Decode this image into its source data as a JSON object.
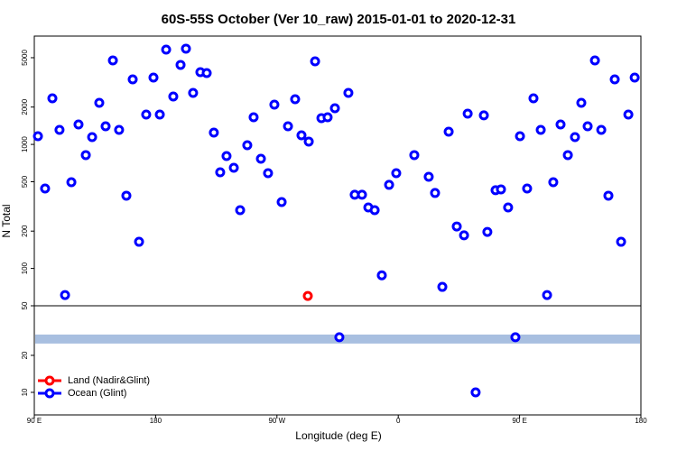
{
  "chart_data": {
    "type": "scatter",
    "title": "60S-55S October (Ver 10_raw)   2015-01-01 to 2020-12-31",
    "xlabel": "Longitude (deg E)",
    "ylabel": "N Total",
    "xlim": [
      90,
      540
    ],
    "xticks": [
      {
        "value": 90,
        "label": "90 E"
      },
      {
        "value": 180,
        "label": "180"
      },
      {
        "value": 270,
        "label": "90 W"
      },
      {
        "value": 360,
        "label": "0"
      },
      {
        "value": 450,
        "label": "90 E"
      },
      {
        "value": 540,
        "label": "180"
      }
    ],
    "log_y": true,
    "ylim": [
      50,
      7470
    ],
    "yticks": [
      50,
      100,
      200,
      500,
      1000,
      2000,
      5000
    ],
    "series": [
      {
        "name": "Land (Nadir&Glint)",
        "color": "#ff0000",
        "x": [
          292.9
        ],
        "values": [
          60
        ]
      },
      {
        "name": "Ocean (Glint)",
        "color": "#0000ff",
        "x": [
          92.7,
          98.0,
          103.4,
          108.7,
          112.8,
          117.5,
          122.8,
          128.2,
          132.9,
          138.2,
          142.9,
          148.3,
          152.9,
          158.3,
          163.0,
          167.7,
          173.0,
          178.4,
          183.1,
          187.8,
          193.1,
          198.5,
          202.5,
          207.8,
          213.2,
          217.9,
          223.2,
          227.9,
          232.6,
          238.0,
          242.7,
          248.0,
          252.7,
          258.1,
          263.4,
          268.1,
          273.5,
          278.2,
          283.5,
          288.2,
          293.6,
          298.3,
          303.0,
          307.6,
          313.0,
          323.0,
          327.7,
          333.1,
          337.8,
          342.5,
          347.8,
          353.2,
          358.5,
          371.9,
          382.6,
          387.3,
          392.7,
          397.4,
          403.4,
          408.8,
          411.5,
          423.5,
          426.1,
          432.2,
          436.2,
          441.5,
          450.3,
          455.6,
          460.3,
          465.7,
          470.4,
          475.0,
          480.4,
          485.8,
          491.1,
          495.8,
          500.5,
          505.9,
          510.6,
          515.9,
          520.6,
          525.3,
          530.7,
          535.4
        ],
        "values": [
          1165,
          441,
          2353,
          1310,
          61,
          496,
          1448,
          820,
          1146,
          2165,
          1400,
          4755,
          1310,
          386,
          3345,
          164,
          1741,
          3460,
          1741,
          5810,
          2434,
          4375,
          5915,
          2603,
          3825,
          3760,
          1246,
          596,
          806,
          648,
          295,
          985,
          1656,
          766,
          586,
          2093,
          343,
          1400,
          2313,
          1184,
          1054,
          4675,
          1629,
          1656,
          1958,
          2603,
          393,
          393,
          310,
          295,
          88,
          472,
          586,
          820,
          548,
          406,
          71,
          1267,
          218,
          185,
          1770,
          1714,
          197,
          427,
          434,
          310,
          1165,
          441,
          2353,
          1310,
          61,
          496,
          1448,
          820,
          1146,
          2165,
          1400,
          4755,
          1310,
          386,
          3345,
          164,
          1741,
          3460
        ]
      }
    ],
    "lower_panel": {
      "ylim": [
        3.9,
        33.4
      ],
      "yticks": [
        10,
        20
      ],
      "band": {
        "value": 24.4,
        "color": "#a8bfe0"
      },
      "legend": "lower left",
      "series": [
        {
          "color": "#0000ff",
          "x": [
            316.3,
            446.9,
            417.4
          ],
          "values": [
            24.9,
            24.9,
            10
          ]
        }
      ]
    }
  }
}
